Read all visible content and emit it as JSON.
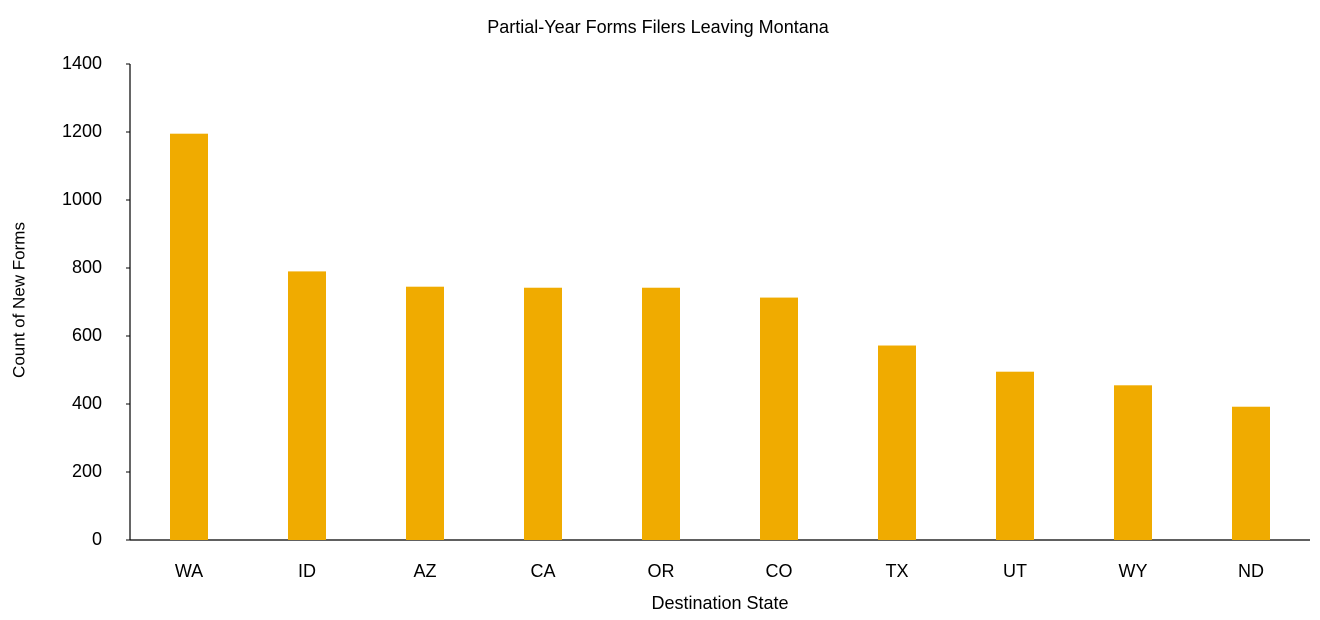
{
  "chart_data": {
    "type": "bar",
    "title": "Partial-Year Forms Filers Leaving Montana",
    "x_label": "Destination State",
    "y_label": "Count of New Forms",
    "categories": [
      "WA",
      "ID",
      "AZ",
      "CA",
      "OR",
      "CO",
      "TX",
      "UT",
      "WY",
      "ND"
    ],
    "values": [
      1195,
      790,
      745,
      742,
      742,
      713,
      572,
      495,
      455,
      392
    ],
    "color": "#f0ab00",
    "ylim": [
      0,
      1400
    ],
    "yticks": [
      0,
      200,
      400,
      600,
      800,
      1000,
      1200,
      1400
    ],
    "grid": false
  }
}
